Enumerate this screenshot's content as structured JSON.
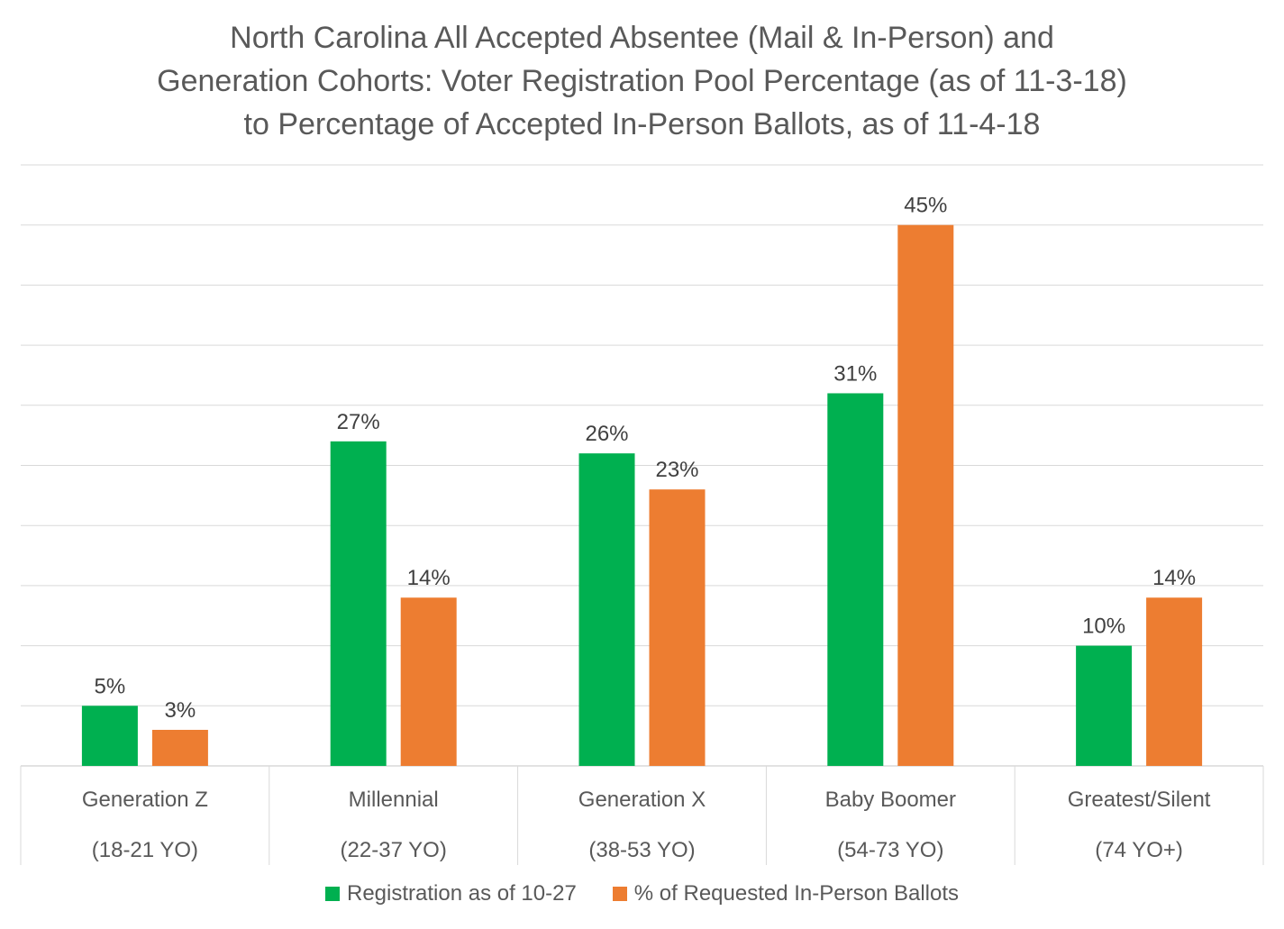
{
  "chart_data": {
    "type": "bar",
    "title_lines": [
      "North Carolina All Accepted Absentee (Mail & In-Person) and",
      "Generation Cohorts: Voter Registration Pool Percentage (as of 11-3-18)",
      "to Percentage of Accepted In-Person Ballots, as of 11-4-18"
    ],
    "categories": [
      {
        "name": "Generation Z",
        "range": "(18-21 YO)"
      },
      {
        "name": "Millennial",
        "range": "(22-37 YO)"
      },
      {
        "name": "Generation X",
        "range": "(38-53 YO)"
      },
      {
        "name": "Baby Boomer",
        "range": "(54-73 YO)"
      },
      {
        "name": "Greatest/Silent",
        "range": "(74 YO+)"
      }
    ],
    "series": [
      {
        "name": "Registration as of 10-27",
        "color": "#00b050",
        "values": [
          5,
          27,
          26,
          31,
          10
        ],
        "labels": [
          "5%",
          "27%",
          "26%",
          "31%",
          "10%"
        ]
      },
      {
        "name": "% of Requested In-Person Ballots",
        "color": "#ed7d31",
        "values": [
          3,
          14,
          23,
          45,
          14
        ],
        "labels": [
          "3%",
          "14%",
          "23%",
          "45%",
          "14%"
        ]
      }
    ],
    "ylim": [
      0,
      50
    ],
    "gridline_step": 5,
    "grid": true,
    "legend_position": "bottom"
  }
}
